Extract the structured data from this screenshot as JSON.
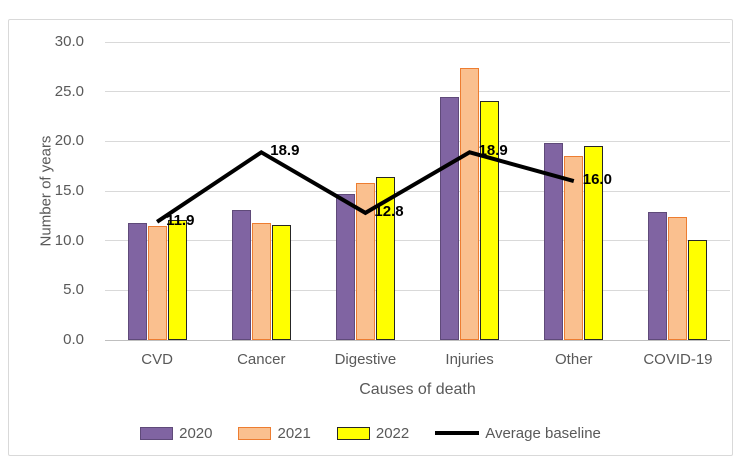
{
  "chart_data": {
    "type": "bar",
    "title": "",
    "xlabel": "Causes of death",
    "ylabel": "Number of years",
    "categories": [
      "CVD",
      "Cancer",
      "Digestive",
      "Injuries",
      "Other",
      "COVID-19"
    ],
    "series": [
      {
        "name": "2020",
        "color": "#8064A2",
        "border": "#5F4A79",
        "values": [
          11.8,
          13.1,
          14.7,
          24.5,
          19.8,
          12.9
        ]
      },
      {
        "name": "2021",
        "color": "#FAC08F",
        "border": "#ED7D31",
        "values": [
          11.5,
          11.8,
          15.8,
          27.4,
          18.5,
          12.4
        ]
      },
      {
        "name": "2022",
        "color": "#FFFF00",
        "border": "#262626",
        "values": [
          12.1,
          11.6,
          16.4,
          24.1,
          19.5,
          10.1
        ]
      }
    ],
    "baseline": {
      "name": "Average baseline",
      "color": "#000000",
      "values": [
        11.9,
        18.9,
        12.8,
        18.9,
        16.0
      ],
      "labels": [
        "11.9",
        "18.9",
        "12.8",
        "18.9",
        "16.0"
      ]
    },
    "ylim": [
      0,
      30
    ],
    "yticks": [
      "30.0",
      "25.0",
      "20.0",
      "15.0",
      "10.0",
      "5.0",
      "0.0"
    ],
    "ytick_values": [
      30,
      25,
      20,
      15,
      10,
      5,
      0
    ],
    "grid": true,
    "legend_position": "bottom"
  },
  "colors": {
    "grid": "#D9D9D9",
    "axis": "#BFBFBF",
    "text": "#595959",
    "data_label": "#000000",
    "frame_border": "#D9D9D9",
    "background": "#FFFFFF"
  }
}
